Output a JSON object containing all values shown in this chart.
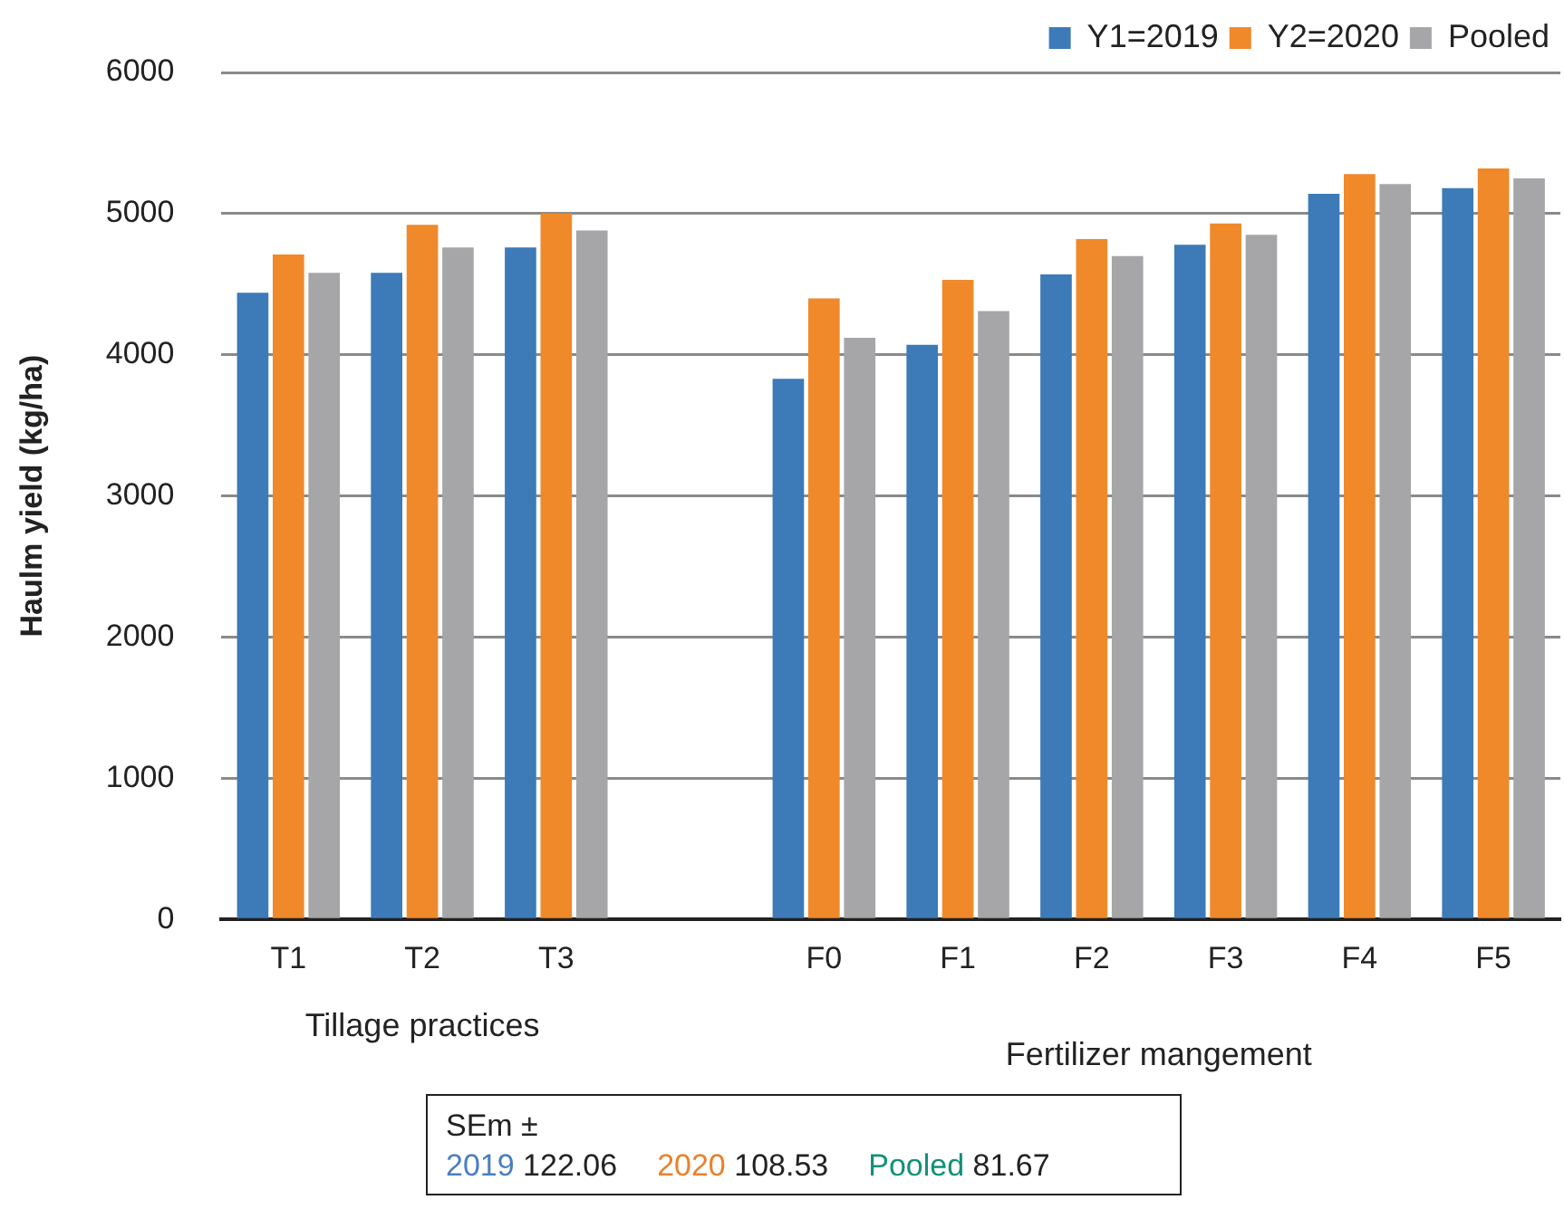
{
  "chart_data": {
    "type": "bar",
    "ylabel": "Haulm yield (kg/ha)",
    "categories": [
      "T1",
      "T2",
      "T3",
      null,
      "F0",
      "F1",
      "F2",
      "F3",
      "F4",
      "F5"
    ],
    "series": [
      {
        "name": "Y1=2019",
        "color": "#3d7ab8",
        "values": [
          4440,
          4580,
          4760,
          null,
          3830,
          4070,
          4570,
          4780,
          5140,
          5180
        ]
      },
      {
        "name": "Y2=2020",
        "color": "#f0892a",
        "values": [
          4710,
          4920,
          5000,
          null,
          4400,
          4530,
          4820,
          4930,
          5280,
          5320
        ]
      },
      {
        "name": "Pooled",
        "color": "#a6a6a8",
        "values": [
          4580,
          4760,
          4880,
          null,
          4120,
          4310,
          4700,
          4850,
          5210,
          5250
        ]
      }
    ],
    "ylim": [
      0,
      6000
    ],
    "yticks": [
      0,
      1000,
      2000,
      3000,
      4000,
      5000,
      6000
    ],
    "grid": "y",
    "legend": "top right",
    "annotations": [
      "Tillage practices",
      "Fertilizer mangement",
      "SEm ±",
      "2019 122.06",
      "2020 108.53",
      "Pooled 81.67"
    ]
  }
}
